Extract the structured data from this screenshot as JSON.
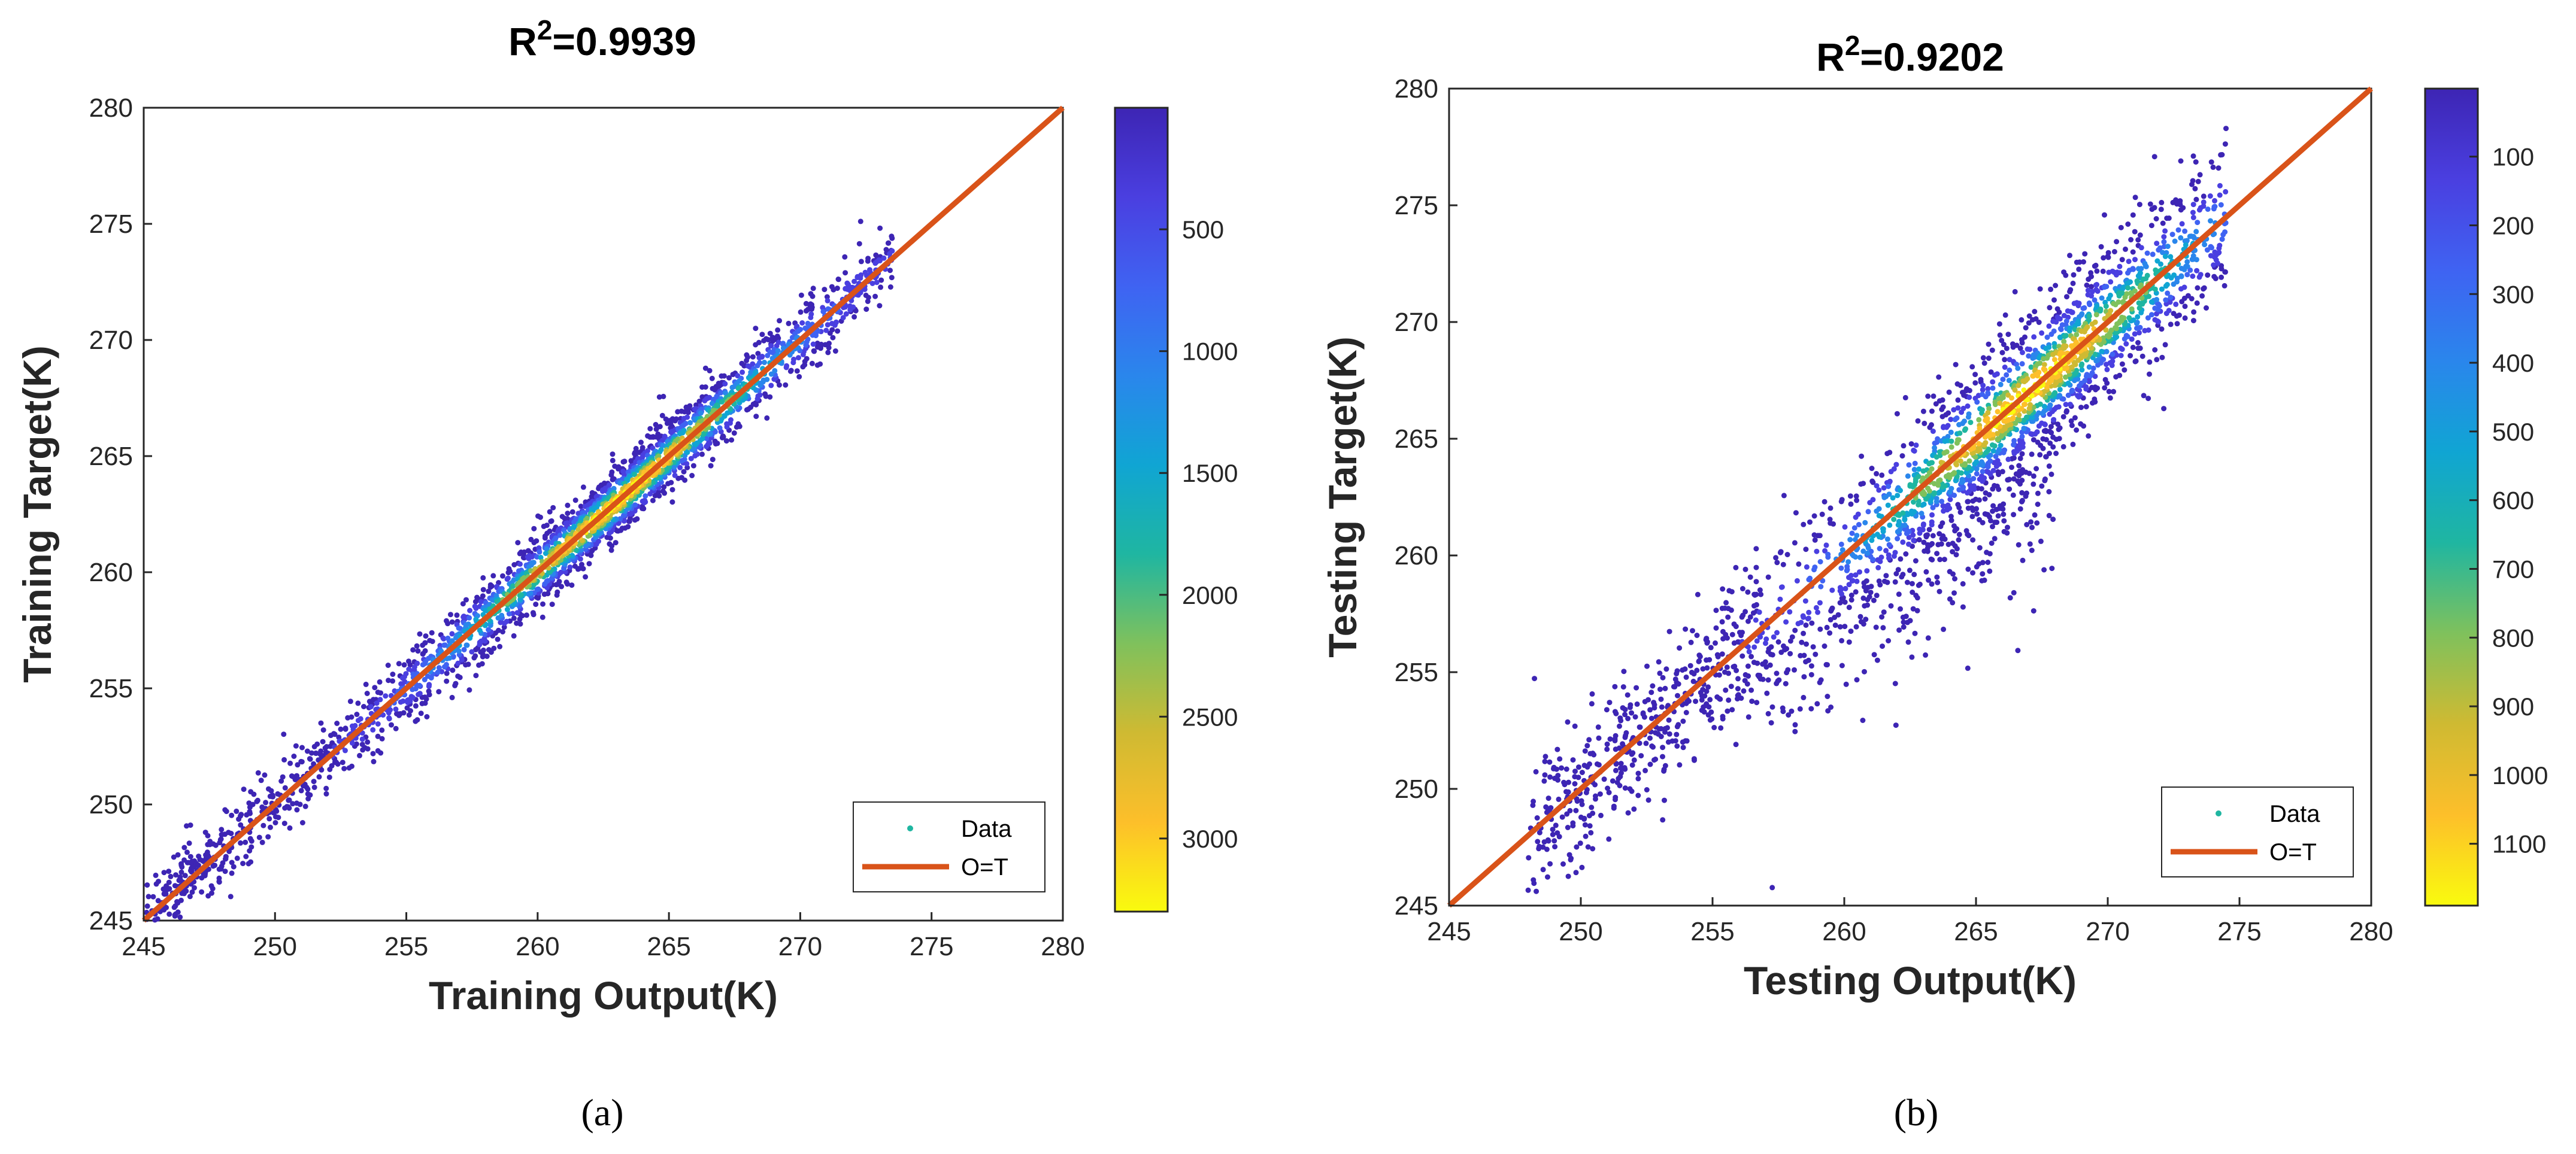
{
  "colormap": [
    "#f9fb0e",
    "#fdbf2a",
    "#cfba32",
    "#7fc15c",
    "#1fb6a1",
    "#10a5d3",
    "#2a86ec",
    "#3f63f2",
    "#4a3fe0",
    "#3d25b4"
  ],
  "chart_data": [
    {
      "type": "scatter",
      "panel_label": "(a)",
      "title_base": "R",
      "title_sup": "2",
      "title_rest": "=0.9939",
      "xlabel": "Training Output(K)",
      "ylabel": "Training Target(K)",
      "xlim": [
        245,
        280
      ],
      "ylim": [
        245,
        280
      ],
      "xticks": [
        245,
        250,
        255,
        260,
        265,
        270,
        275,
        280
      ],
      "yticks": [
        245,
        250,
        255,
        260,
        265,
        270,
        275,
        280
      ],
      "legend": {
        "position": "bottom-right",
        "entries": [
          "Data",
          "O=T"
        ]
      },
      "grid": false,
      "series": [
        {
          "name": "Data",
          "kind": "density-scatter",
          "x_range": [
            245,
            273.5
          ],
          "center_line": "y = x",
          "spread": 0.8,
          "density_peak_x": 263
        },
        {
          "name": "O=T",
          "kind": "line",
          "color": "#d95319",
          "x": [
            245,
            280
          ],
          "y": [
            245,
            280
          ]
        }
      ],
      "colorbar": {
        "ticks": [
          500,
          1000,
          1500,
          2000,
          2500,
          3000
        ],
        "range": [
          1,
          3300
        ],
        "direction": "high-at-bottom"
      }
    },
    {
      "type": "scatter",
      "panel_label": "(b)",
      "title_base": "R",
      "title_sup": "2",
      "title_rest": "=0.9202",
      "xlabel": "Testing Output(K)",
      "ylabel": "Testing Target(K)",
      "xlim": [
        245,
        280
      ],
      "ylim": [
        245,
        280
      ],
      "xticks": [
        245,
        250,
        255,
        260,
        265,
        270,
        275,
        280
      ],
      "yticks": [
        245,
        250,
        255,
        260,
        265,
        270,
        275,
        280
      ],
      "legend": {
        "position": "bottom-right",
        "entries": [
          "Data",
          "O=T"
        ]
      },
      "grid": false,
      "series": [
        {
          "name": "Data",
          "kind": "density-scatter",
          "x_range": [
            248,
            274.5
          ],
          "center_line": "y = x",
          "spread": 1.6,
          "density_peak_x": 267
        },
        {
          "name": "O=T",
          "kind": "line",
          "color": "#d95319",
          "x": [
            245,
            280
          ],
          "y": [
            245,
            280
          ]
        }
      ],
      "colorbar": {
        "ticks": [
          100,
          200,
          300,
          400,
          500,
          600,
          700,
          800,
          900,
          1000,
          1100
        ],
        "range": [
          1,
          1190
        ],
        "direction": "high-at-bottom"
      }
    }
  ]
}
